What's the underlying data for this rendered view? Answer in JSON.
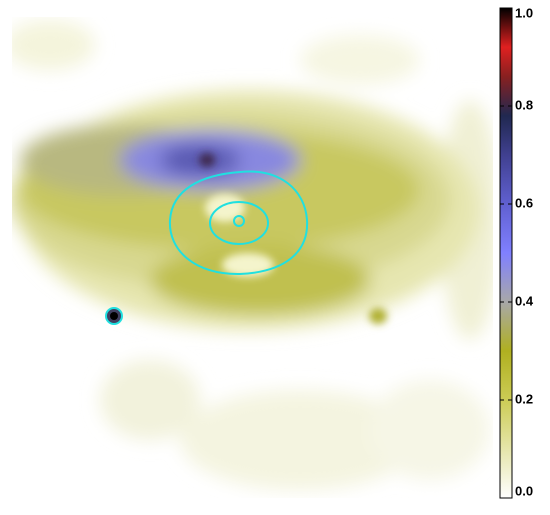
{
  "chart_data": {
    "type": "image",
    "colorbar": {
      "clim": [
        0,
        1
      ],
      "ticks": [
        {
          "value": 0,
          "label": "0.0"
        },
        {
          "value": 0.2,
          "label": "0.2"
        },
        {
          "value": 0.4,
          "label": "0.4"
        },
        {
          "value": 0.6,
          "label": "0.6"
        },
        {
          "value": 0.8,
          "label": "0.8"
        },
        {
          "value": 1,
          "label": "1.0"
        }
      ]
    },
    "contour_color": "#20e0e0"
  }
}
